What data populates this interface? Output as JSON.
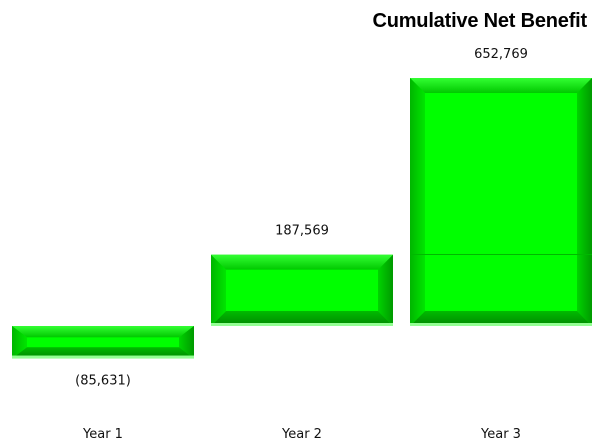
{
  "chart_data": {
    "type": "bar",
    "title": "Cumulative Net Benefit",
    "categories": [
      "Year 1",
      "Year 2",
      "Year 3"
    ],
    "values": [
      -85631,
      187569,
      652769
    ],
    "data_labels": [
      "(85,631)",
      "187,569",
      "652,769"
    ],
    "ylim": [
      -100000,
      700000
    ],
    "grid": false,
    "legend": "none",
    "bar_color": "#00ff00"
  }
}
